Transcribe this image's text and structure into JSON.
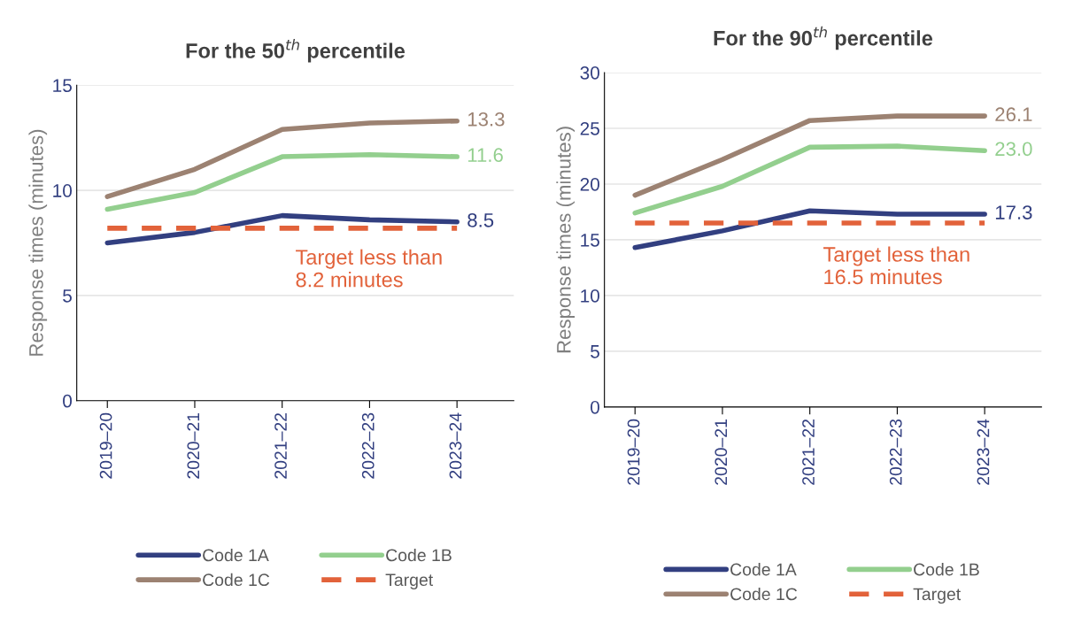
{
  "chart_data": [
    {
      "type": "line",
      "title": "For the 50$^{th}$ percentile",
      "ylabel": "Response times (minutes)",
      "categories": [
        "2019–20",
        "2020–21",
        "2021–22",
        "2022–23",
        "2023–24"
      ],
      "series": [
        {
          "name": "Code 1A",
          "color": "#323f80",
          "values": [
            7.5,
            8.0,
            8.8,
            8.6,
            8.5
          ],
          "value_labels": [
            null,
            null,
            null,
            null,
            "8.5"
          ]
        },
        {
          "name": "Code 1B",
          "color": "#93cf8e",
          "values": [
            9.1,
            9.9,
            11.6,
            11.7,
            11.6
          ],
          "value_labels": [
            null,
            null,
            null,
            null,
            "11.6"
          ]
        },
        {
          "name": "Code 1C",
          "color": "#9c8272",
          "values": [
            9.7,
            11.0,
            12.9,
            13.2,
            13.3
          ],
          "value_labels": [
            null,
            null,
            null,
            null,
            "13.3"
          ]
        },
        {
          "name": "Target",
          "color": "#e2623a",
          "line_style": "dashed",
          "values": [
            8.2,
            8.2,
            8.2,
            8.2,
            8.2
          ]
        }
      ],
      "annotations": [
        "Target less than\n8.2 minutes"
      ],
      "ylim": [
        0,
        15
      ],
      "yticks": [
        0,
        5,
        10,
        15
      ],
      "grid": "y",
      "legend": "bottom"
    },
    {
      "type": "line",
      "title": "For the 90$^{th}$ percentile",
      "ylabel": "Response times (minutes)",
      "categories": [
        "2019–20",
        "2020–21",
        "2021–22",
        "2022–23",
        "2023–24"
      ],
      "series": [
        {
          "name": "Code 1A",
          "color": "#323f80",
          "values": [
            14.3,
            15.8,
            17.6,
            17.3,
            17.3
          ],
          "value_labels": [
            null,
            null,
            null,
            null,
            "17.3"
          ]
        },
        {
          "name": "Code 1B",
          "color": "#93cf8e",
          "values": [
            17.4,
            19.8,
            23.3,
            23.4,
            23.0
          ],
          "value_labels": [
            null,
            null,
            null,
            null,
            "23.0"
          ]
        },
        {
          "name": "Code 1C",
          "color": "#9c8272",
          "values": [
            19.0,
            22.2,
            25.7,
            26.1,
            26.1
          ],
          "value_labels": [
            null,
            null,
            null,
            null,
            "26.1"
          ]
        },
        {
          "name": "Target",
          "color": "#e2623a",
          "line_style": "dashed",
          "values": [
            16.5,
            16.5,
            16.5,
            16.5,
            16.5
          ]
        }
      ],
      "annotations": [
        "Target less than\n16.5 minutes"
      ],
      "ylim": [
        0,
        30
      ],
      "yticks": [
        0,
        5,
        10,
        15,
        20,
        25,
        30
      ],
      "grid": "y",
      "legend": "bottom"
    }
  ]
}
